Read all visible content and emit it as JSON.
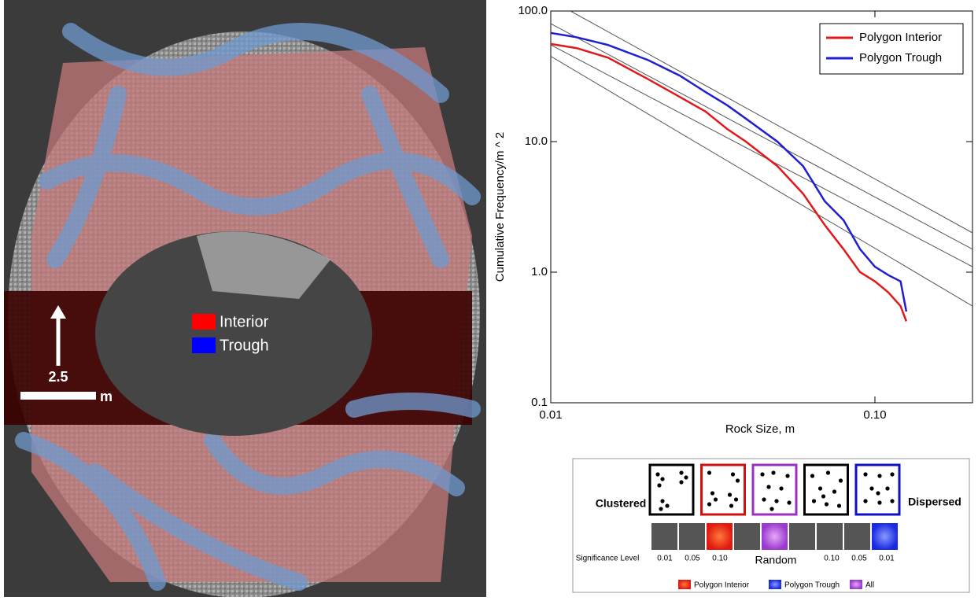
{
  "image": {
    "legend": [
      "Interior",
      "Trough"
    ],
    "scale_value": "2.5",
    "scale_unit": "m"
  },
  "chart_data": {
    "type": "line",
    "x_label": "Rock Size, m",
    "y_label": "Cumulative Frequency/m ^ 2",
    "log_x": true,
    "log_y": true,
    "xlim": [
      0.01,
      0.2
    ],
    "ylim": [
      0.1,
      100
    ],
    "xticks": [
      0.01,
      {
        "value": 0.1,
        "label": "0.10"
      }
    ],
    "yticks": [
      0.1,
      {
        "value": 1,
        "label": "1.0"
      },
      {
        "value": 10,
        "label": "10.0"
      },
      {
        "value": 100,
        "label": "100.0"
      }
    ],
    "legend_position": "upper right",
    "series": [
      {
        "name": "Polygon Interior",
        "color": "#e0191b",
        "x": [
          0.01,
          0.012,
          0.015,
          0.02,
          0.025,
          0.03,
          0.035,
          0.04,
          0.05,
          0.06,
          0.07,
          0.08,
          0.09,
          0.1,
          0.11,
          0.12,
          0.125
        ],
        "values": [
          56,
          52,
          44,
          30,
          22,
          17,
          12.5,
          10,
          6.5,
          4,
          2.3,
          1.5,
          1.0,
          0.85,
          0.7,
          0.55,
          0.42
        ]
      },
      {
        "name": "Polygon Trough",
        "color": "#1f1fd0",
        "x": [
          0.01,
          0.012,
          0.015,
          0.02,
          0.025,
          0.03,
          0.035,
          0.04,
          0.05,
          0.06,
          0.07,
          0.08,
          0.09,
          0.1,
          0.11,
          0.12,
          0.125
        ],
        "values": [
          68,
          63,
          55,
          42,
          32,
          24,
          19,
          15,
          10,
          6.5,
          3.5,
          2.5,
          1.5,
          1.1,
          0.95,
          0.85,
          0.5
        ]
      }
    ],
    "reference_lines": [
      {
        "color": "#555555",
        "x": [
          0.0115,
          0.2
        ],
        "values": [
          100,
          2.0
        ]
      },
      {
        "color": "#555555",
        "x": [
          0.01,
          0.2
        ],
        "values": [
          80,
          1.5
        ]
      },
      {
        "color": "#555555",
        "x": [
          0.01,
          0.2
        ],
        "values": [
          55,
          1.1
        ]
      },
      {
        "color": "#555555",
        "x": [
          0.01,
          0.2
        ],
        "values": [
          45,
          0.55
        ]
      }
    ]
  },
  "diagram": {
    "left_label": "Clustered",
    "right_label": "Dispersed",
    "significance_label": "Significance Level",
    "levels": [
      "0.01",
      "0.05",
      "0.10",
      "0.10",
      "0.05",
      "0.01"
    ],
    "center_label": "Random",
    "legend": [
      "Polygon Interior",
      "Polygon Trough",
      "All"
    ]
  }
}
